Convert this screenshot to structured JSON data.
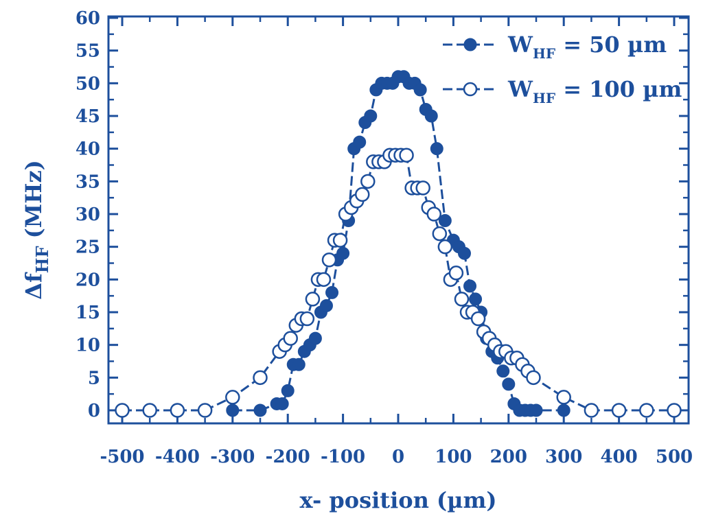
{
  "chart_data": {
    "type": "scatter",
    "xlabel": "x- position (µm)",
    "ylabel_main": "Δf",
    "ylabel_sub": "HF",
    "ylabel_unit": " (MHz)",
    "xlim": [
      -500,
      500
    ],
    "ylim": [
      0,
      60
    ],
    "x_ticks": [
      -500,
      -400,
      -300,
      -200,
      -100,
      0,
      100,
      200,
      300,
      400,
      500
    ],
    "y_ticks": [
      0,
      5,
      10,
      15,
      20,
      25,
      30,
      35,
      40,
      45,
      50,
      55,
      60
    ],
    "grid": false,
    "legend_position": "top-right",
    "colors": {
      "axis": "#1d4f9c",
      "series": "#1d4f9c"
    },
    "series": [
      {
        "name_main": "W",
        "name_sub": "HF",
        "name_rest": " = 50 µm",
        "marker": "filled-circle",
        "x": [
          -300,
          -250,
          -220,
          -210,
          -200,
          -190,
          -180,
          -170,
          -160,
          -150,
          -140,
          -130,
          -120,
          -110,
          -100,
          -90,
          -80,
          -70,
          -60,
          -50,
          -40,
          -30,
          -20,
          -10,
          0,
          10,
          20,
          30,
          40,
          50,
          60,
          70,
          85,
          100,
          110,
          120,
          130,
          140,
          150,
          160,
          170,
          180,
          190,
          200,
          210,
          220,
          230,
          240,
          250,
          300
        ],
        "y": [
          0,
          0,
          1,
          1,
          3,
          7,
          7,
          9,
          10,
          11,
          15,
          16,
          18,
          23,
          24,
          29,
          40,
          41,
          44,
          45,
          49,
          50,
          50,
          50,
          51,
          51,
          50,
          50,
          49,
          46,
          45,
          40,
          29,
          26,
          25,
          24,
          19,
          17,
          15,
          11,
          9,
          8,
          6,
          4,
          1,
          0,
          0,
          0,
          0,
          0
        ]
      },
      {
        "name_main": "W",
        "name_sub": "HF",
        "name_rest": " = 100 µm",
        "marker": "open-circle",
        "x": [
          -500,
          -450,
          -400,
          -350,
          -300,
          -250,
          -215,
          -205,
          -195,
          -185,
          -175,
          -165,
          -155,
          -145,
          -135,
          -125,
          -115,
          -105,
          -95,
          -85,
          -75,
          -65,
          -55,
          -45,
          -35,
          -25,
          -15,
          -5,
          5,
          15,
          25,
          35,
          45,
          55,
          65,
          75,
          85,
          95,
          105,
          115,
          125,
          135,
          145,
          155,
          165,
          175,
          185,
          195,
          205,
          215,
          225,
          235,
          245,
          300,
          350,
          400,
          450,
          500
        ],
        "y": [
          0,
          0,
          0,
          0,
          2,
          5,
          9,
          10,
          11,
          13,
          14,
          14,
          17,
          20,
          20,
          23,
          26,
          26,
          30,
          31,
          32,
          33,
          35,
          38,
          38,
          38,
          39,
          39,
          39,
          39,
          34,
          34,
          34,
          31,
          30,
          27,
          25,
          20,
          21,
          17,
          15,
          15,
          14,
          12,
          11,
          10,
          9,
          9,
          8,
          8,
          7,
          6,
          5,
          2,
          0,
          0,
          0,
          0
        ]
      }
    ]
  }
}
